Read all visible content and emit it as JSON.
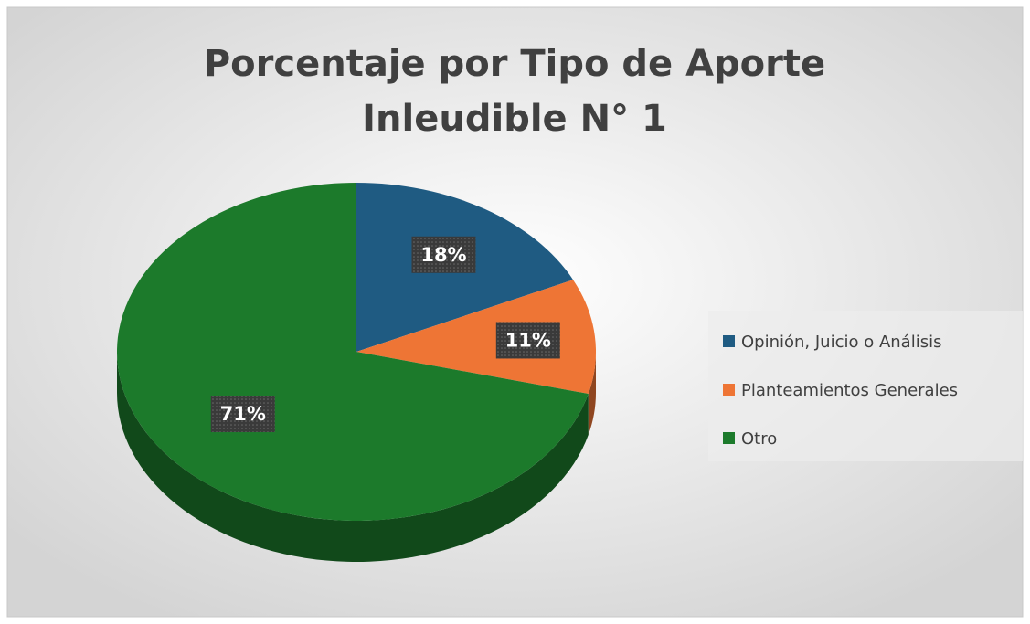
{
  "chart_data": {
    "type": "pie",
    "title": [
      "Porcentaje por Tipo de Aporte",
      "Inleudible N° 1"
    ],
    "categories": [
      "Opinión, Juicio o Análisis",
      "Planteamientos Generales",
      "Otro"
    ],
    "values": [
      18,
      11,
      71
    ],
    "value_labels": [
      "18%",
      "11%",
      "71%"
    ],
    "colors": [
      "#1f5b82",
      "#ee7535",
      "#1c7a2b"
    ],
    "legend": "right"
  }
}
